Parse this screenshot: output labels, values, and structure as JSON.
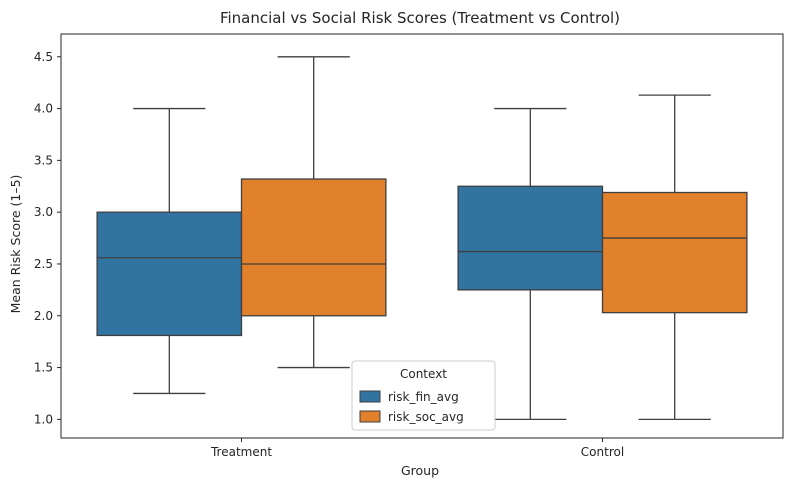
{
  "chart_data": {
    "type": "box",
    "title": "Financial vs Social Risk Scores (Treatment vs Control)",
    "xlabel": "Group",
    "ylabel": "Mean Risk Score (1–5)",
    "categories": [
      "Treatment",
      "Control"
    ],
    "ylim": [
      0.82,
      4.72
    ],
    "yticks": [
      "1.0",
      "1.5",
      "2.0",
      "2.5",
      "3.0",
      "3.5",
      "4.0",
      "4.5"
    ],
    "grid": false,
    "legend": {
      "title": "Context",
      "placement": "lower-center"
    },
    "series": [
      {
        "name": "risk_fin_avg",
        "color": "#3274a1",
        "boxes": [
          {
            "category": "Treatment",
            "whisker_low": 1.25,
            "q1": 1.81,
            "median": 2.56,
            "q3": 3.0,
            "whisker_high": 4.0
          },
          {
            "category": "Control",
            "whisker_low": 1.0,
            "q1": 2.25,
            "median": 2.62,
            "q3": 3.25,
            "whisker_high": 4.0
          }
        ]
      },
      {
        "name": "risk_soc_avg",
        "color": "#e1812c",
        "boxes": [
          {
            "category": "Treatment",
            "whisker_low": 1.5,
            "q1": 2.0,
            "median": 2.5,
            "q3": 3.32,
            "whisker_high": 4.5
          },
          {
            "category": "Control",
            "whisker_low": 1.0,
            "q1": 2.03,
            "median": 2.75,
            "q3": 3.19,
            "whisker_high": 4.13
          }
        ]
      }
    ]
  }
}
